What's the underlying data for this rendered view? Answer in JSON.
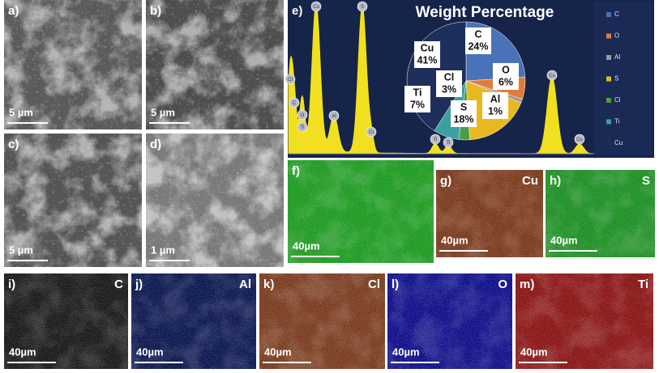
{
  "chart_data": {
    "type": "pie",
    "title": "Weight Percentage",
    "categories": [
      "C",
      "O",
      "Al",
      "S",
      "Cl",
      "Ti",
      "Cu"
    ],
    "values": [
      24,
      6,
      1,
      18,
      3,
      7,
      41
    ],
    "value_labels": [
      "24%",
      "6%",
      "1%",
      "18%",
      "3%",
      "7%",
      "41%"
    ],
    "colors": [
      "#4a72b8",
      "#e07b39",
      "#9a9a9a",
      "#e8b820",
      "#4f9a48",
      "#3aa0a0",
      "#1e2f5c"
    ],
    "legend": "right"
  },
  "panels": [
    {
      "label": "a)",
      "scale": "5 µm"
    },
    {
      "label": "b)",
      "scale": "5 µm"
    },
    {
      "label": "c)",
      "scale": "5 µm"
    },
    {
      "label": "d)",
      "scale": "1 µm"
    },
    {
      "label": "e)"
    },
    {
      "label": "f)",
      "scale": "40µm"
    },
    {
      "label": "g)",
      "element": "Cu",
      "scale": "40µm"
    },
    {
      "label": "h)",
      "element": "S",
      "scale": "40µm"
    },
    {
      "label": "i)",
      "element": "C",
      "scale": "40µm"
    },
    {
      "label": "j)",
      "element": "Al",
      "scale": "40µm"
    },
    {
      "label": "k)",
      "element": "Cl",
      "scale": "40µm"
    },
    {
      "label": "l)",
      "element": "O",
      "scale": "40µm"
    },
    {
      "label": "m)",
      "element": "Ti",
      "scale": "40µm"
    }
  ],
  "spectrum_peaks": [
    "Cl",
    "C",
    "O",
    "Ti",
    "Cu",
    "Al",
    "S",
    "Cl",
    "Ti",
    "Ti",
    "Cu",
    "Cu"
  ]
}
